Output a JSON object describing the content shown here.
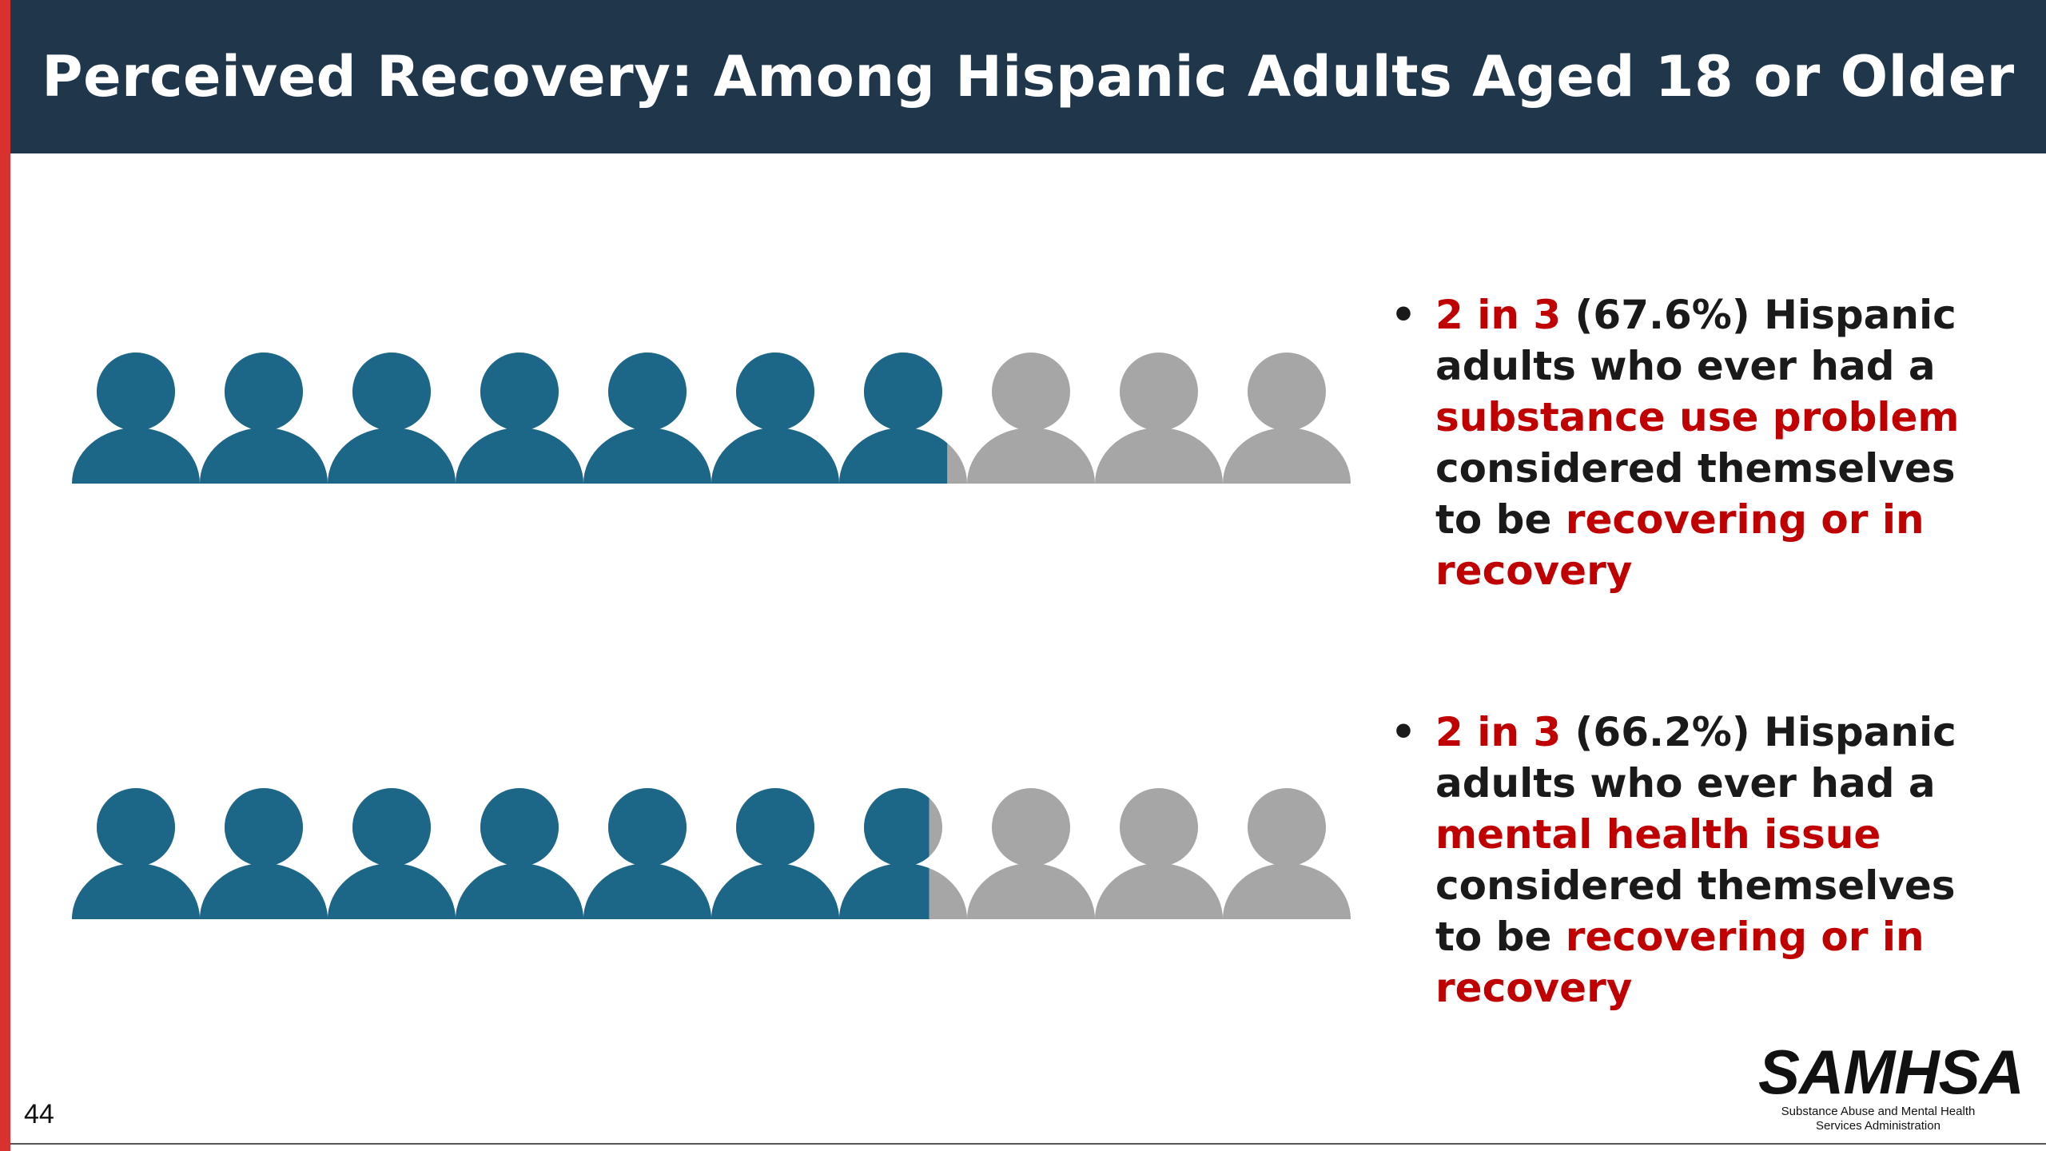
{
  "slide": {
    "title": "Perceived Recovery: Among Hispanic Adults Aged 18 or Older",
    "page_number": "44",
    "logo": {
      "wordmark": "SAMHSA",
      "subtitle_line1": "Substance Abuse and Mental Health",
      "subtitle_line2": "Services Administration"
    },
    "colors": {
      "title_bar": "#1f364b",
      "accent_stripe": "#d9322e",
      "filled_figure": "#1c6787",
      "empty_figure": "#a6a6a6",
      "highlight_text": "#c00000"
    }
  },
  "bullets": [
    {
      "bullet": "•",
      "ratio": "2 in 3",
      "pct_text": " (67.6%) Hispanic adults who ever had a ",
      "condition": "substance use problem",
      "middle": " considered themselves to be ",
      "status": "recovering or in recovery"
    },
    {
      "bullet": "•",
      "ratio": "2 in 3",
      "pct_text": " (66.2%) Hispanic adults who ever had a ",
      "condition": "mental health issue",
      "middle": " considered themselves to be ",
      "status": "recovering or in recovery"
    }
  ],
  "chart_data": [
    {
      "type": "pictograph",
      "icon": "person-icon",
      "total_icons": 10,
      "filled_fraction": 0.676,
      "value_percent": 67.6,
      "filled_color": "#1c6787",
      "empty_color": "#a6a6a6"
    },
    {
      "type": "pictograph",
      "icon": "person-icon",
      "total_icons": 10,
      "filled_fraction": 0.662,
      "value_percent": 66.2,
      "filled_color": "#1c6787",
      "empty_color": "#a6a6a6"
    }
  ]
}
